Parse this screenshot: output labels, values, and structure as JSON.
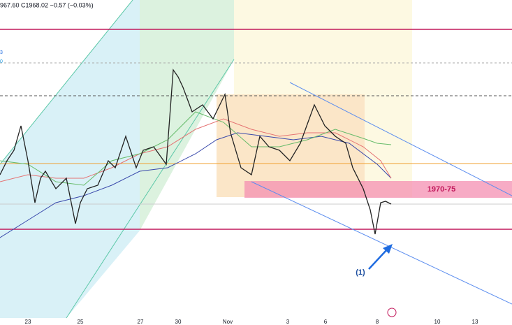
{
  "header": {
    "ohlc": "967.60 C1968.02 −0.57 (−0.03%)"
  },
  "left_labels": [
    "3",
    "0"
  ],
  "x_axis": {
    "labels": [
      "23",
      "25",
      "27",
      "30",
      "Nov",
      "3",
      "6",
      "8",
      "10",
      "13"
    ]
  },
  "annotations": {
    "zone": "1970-75",
    "wave": "(1)"
  }
}
